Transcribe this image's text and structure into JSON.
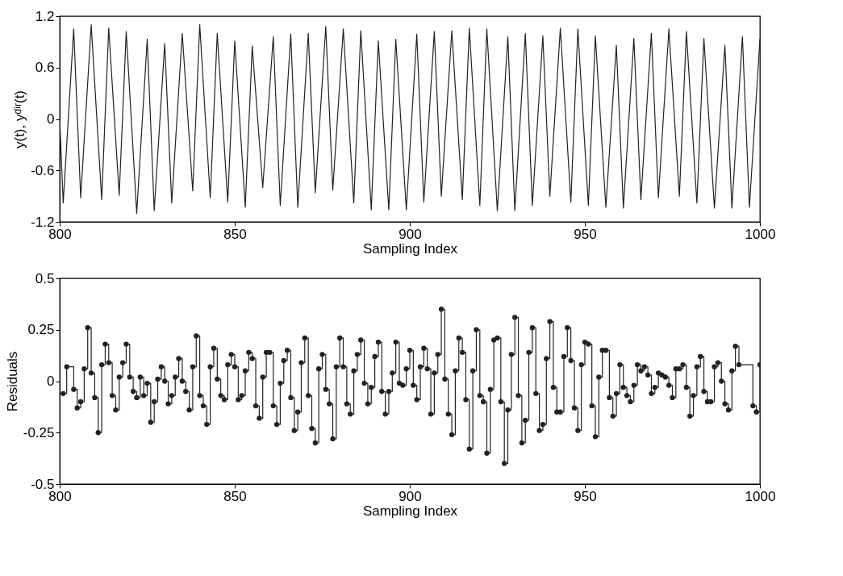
{
  "chart_data": [
    {
      "type": "line",
      "xlabel": "Sampling Index",
      "ylabel": "y(t), yᵈⁱʳ(t)",
      "xlim": [
        800,
        1000
      ],
      "ylim": [
        -1.2,
        1.2
      ],
      "xticks": [
        800,
        850,
        900,
        950,
        1000
      ],
      "yticks": [
        -1.2,
        -0.6,
        0,
        0.6,
        1.2
      ],
      "grid": false,
      "marker": "none",
      "line_style": "solid",
      "series": [
        {
          "color": "#222222",
          "x": [
            800,
            801,
            804,
            806,
            809,
            812,
            814,
            817,
            819,
            822,
            825,
            827,
            830,
            832,
            835,
            838,
            840,
            843,
            845,
            848,
            850,
            853,
            855,
            858,
            861,
            863,
            866,
            868,
            871,
            873,
            876,
            878,
            881,
            884,
            886,
            889,
            891,
            894,
            896,
            899,
            902,
            904,
            907,
            909,
            912,
            915,
            917,
            920,
            922,
            925,
            928,
            930,
            933,
            935,
            938,
            940,
            943,
            946,
            948,
            951,
            953,
            956,
            959,
            961,
            964,
            966,
            969,
            971,
            974,
            977,
            979,
            982,
            984,
            987,
            990,
            992,
            995,
            997,
            1000
          ],
          "values": [
            0.0,
            -0.98,
            1.05,
            -0.92,
            1.1,
            -0.94,
            1.06,
            -0.89,
            1.02,
            -1.1,
            0.93,
            -1.07,
            0.88,
            -0.98,
            1.0,
            -0.84,
            1.1,
            -0.92,
            1.0,
            -0.97,
            0.91,
            -1.03,
            0.85,
            -0.8,
            0.96,
            -1.01,
            0.99,
            -1.03,
            1.0,
            -0.86,
            1.08,
            -0.83,
            1.05,
            -0.98,
            1.03,
            -1.06,
            0.91,
            -1.06,
            0.93,
            -1.06,
            0.99,
            -0.97,
            1.02,
            -0.9,
            1.03,
            -0.94,
            1.06,
            -1.01,
            1.05,
            -1.07,
            0.96,
            -1.07,
            1.0,
            -1.01,
            0.97,
            -0.9,
            1.06,
            -0.97,
            1.05,
            -1.01,
            0.97,
            -1.03,
            0.86,
            -1.04,
            0.94,
            -0.94,
            1.0,
            -0.92,
            1.05,
            -0.9,
            1.02,
            -0.98,
            0.94,
            -1.04,
            0.86,
            -1.04,
            0.96,
            -1.03,
            0.93
          ]
        }
      ]
    },
    {
      "type": "step",
      "xlabel": "Sampling Index",
      "ylabel": "Residuals",
      "xlim": [
        800,
        1000
      ],
      "ylim": [
        -0.5,
        0.5
      ],
      "xticks": [
        800,
        850,
        900,
        950,
        1000
      ],
      "yticks": [
        -0.5,
        -0.25,
        0,
        0.25,
        0.5
      ],
      "grid": false,
      "marker": "circle",
      "line_style": "solid",
      "series": [
        {
          "color": "#222222",
          "x": [
            801,
            802,
            804,
            805,
            806,
            807,
            808,
            809,
            810,
            811,
            812,
            813,
            814,
            815,
            816,
            817,
            818,
            819,
            820,
            821,
            822,
            823,
            824,
            825,
            826,
            827,
            828,
            829,
            830,
            831,
            832,
            833,
            834,
            835,
            836,
            837,
            838,
            839,
            840,
            841,
            842,
            843,
            844,
            845,
            846,
            847,
            848,
            849,
            850,
            851,
            852,
            853,
            854,
            855,
            856,
            857,
            858,
            859,
            860,
            861,
            862,
            863,
            864,
            865,
            866,
            867,
            868,
            869,
            870,
            871,
            872,
            873,
            874,
            875,
            876,
            877,
            878,
            879,
            880,
            881,
            882,
            883,
            884,
            885,
            886,
            887,
            888,
            889,
            890,
            891,
            892,
            893,
            894,
            895,
            896,
            897,
            898,
            899,
            900,
            901,
            902,
            903,
            904,
            905,
            906,
            907,
            908,
            909,
            910,
            911,
            912,
            913,
            914,
            915,
            916,
            917,
            918,
            919,
            920,
            921,
            922,
            923,
            924,
            925,
            926,
            927,
            928,
            929,
            930,
            931,
            932,
            933,
            934,
            935,
            936,
            937,
            938,
            939,
            940,
            941,
            942,
            943,
            944,
            945,
            946,
            947,
            948,
            949,
            950,
            951,
            952,
            953,
            954,
            955,
            956,
            957,
            958,
            959,
            960,
            961,
            962,
            963,
            964,
            965,
            966,
            967,
            968,
            969,
            970,
            971,
            972,
            973,
            974,
            975,
            976,
            977,
            978,
            979,
            980,
            981,
            982,
            983,
            984,
            985,
            986,
            987,
            988,
            989,
            990,
            991,
            992,
            993,
            994,
            998,
            999,
            1000
          ],
          "values": [
            -0.06,
            0.07,
            -0.04,
            -0.13,
            -0.1,
            0.06,
            0.26,
            0.04,
            -0.08,
            -0.25,
            0.08,
            0.18,
            0.09,
            -0.07,
            -0.14,
            0.02,
            0.09,
            0.18,
            0.02,
            -0.05,
            -0.08,
            0.02,
            -0.07,
            -0.01,
            -0.2,
            -0.1,
            0.01,
            0.07,
            0.0,
            -0.11,
            -0.07,
            0.02,
            0.11,
            0.0,
            -0.05,
            -0.14,
            0.07,
            0.22,
            -0.07,
            -0.12,
            -0.21,
            0.07,
            0.16,
            0.01,
            -0.07,
            -0.09,
            0.08,
            0.13,
            0.07,
            -0.09,
            -0.07,
            0.05,
            0.14,
            0.11,
            -0.12,
            -0.18,
            0.02,
            0.14,
            0.14,
            -0.12,
            -0.21,
            -0.01,
            0.1,
            0.15,
            -0.08,
            -0.24,
            -0.15,
            0.09,
            0.21,
            -0.07,
            -0.23,
            -0.3,
            0.06,
            0.13,
            -0.04,
            -0.11,
            -0.28,
            0.07,
            0.21,
            0.07,
            -0.11,
            -0.16,
            0.05,
            0.13,
            0.2,
            -0.01,
            -0.11,
            -0.03,
            0.12,
            0.19,
            -0.05,
            -0.16,
            -0.05,
            0.04,
            0.19,
            -0.01,
            -0.02,
            0.06,
            0.15,
            -0.02,
            -0.09,
            0.07,
            0.16,
            0.06,
            -0.16,
            0.04,
            0.13,
            0.35,
            0.01,
            -0.16,
            -0.26,
            0.05,
            0.21,
            0.14,
            -0.09,
            -0.33,
            0.05,
            0.25,
            -0.07,
            -0.1,
            -0.35,
            -0.04,
            0.2,
            0.21,
            -0.1,
            -0.4,
            -0.14,
            0.13,
            0.31,
            -0.07,
            -0.3,
            -0.19,
            0.14,
            0.26,
            -0.06,
            -0.24,
            -0.21,
            0.11,
            0.29,
            -0.03,
            -0.15,
            -0.15,
            0.12,
            0.26,
            0.1,
            -0.13,
            -0.24,
            0.08,
            0.19,
            0.18,
            -0.12,
            -0.27,
            0.02,
            0.15,
            0.15,
            -0.08,
            -0.17,
            -0.06,
            0.08,
            -0.03,
            -0.07,
            -0.1,
            -0.02,
            0.08,
            0.05,
            0.07,
            0.03,
            -0.06,
            -0.03,
            0.04,
            0.03,
            0.02,
            -0.02,
            -0.08,
            0.06,
            0.06,
            0.08,
            -0.03,
            -0.17,
            -0.07,
            0.07,
            0.12,
            -0.05,
            -0.1,
            -0.1,
            0.07,
            0.09,
            0.0,
            -0.11,
            -0.14,
            0.05,
            0.17,
            0.08,
            -0.12,
            -0.15,
            0.08
          ]
        }
      ]
    }
  ]
}
